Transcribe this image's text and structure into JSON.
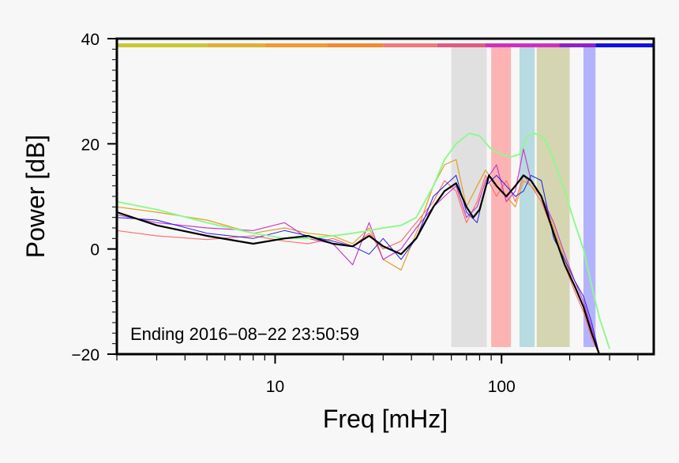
{
  "chart_data": {
    "type": "line",
    "xlabel": "Freq [mHz]",
    "ylabel": "Power [dB]",
    "xscale": "log",
    "xlim": [
      2,
      470
    ],
    "ylim": [
      -20,
      40
    ],
    "x_tick_labels": [
      {
        "value": 10,
        "label": "10"
      },
      {
        "value": 100,
        "label": "100"
      }
    ],
    "y_tick_labels": [
      {
        "value": 40,
        "label": "40"
      },
      {
        "value": 20,
        "label": "20"
      },
      {
        "value": 0,
        "label": "0"
      },
      {
        "value": -20,
        "label": "−20"
      }
    ],
    "annotation": "Ending 2016−08−22 23:50:59",
    "top_color_bar": [
      {
        "from": 2,
        "to": 5,
        "color": "#c8c832"
      },
      {
        "from": 5,
        "to": 9,
        "color": "#e0b032"
      },
      {
        "from": 9,
        "to": 17,
        "color": "#f09a30"
      },
      {
        "from": 17,
        "to": 30,
        "color": "#f08a30"
      },
      {
        "from": 30,
        "to": 52,
        "color": "#f07878"
      },
      {
        "from": 52,
        "to": 85,
        "color": "#e05a80"
      },
      {
        "from": 85,
        "to": 180,
        "color": "#d030c0"
      },
      {
        "from": 180,
        "to": 260,
        "color": "#9020c8"
      },
      {
        "from": 260,
        "to": 470,
        "color": "#1010e0"
      }
    ],
    "shaded_bands": [
      {
        "from": 60,
        "to": 86,
        "color": "#d0d0d0",
        "opacity": 0.6
      },
      {
        "from": 90,
        "to": 110,
        "color": "#ff9696",
        "opacity": 0.7
      },
      {
        "from": 120,
        "to": 140,
        "color": "#8cc8d0",
        "opacity": 0.6
      },
      {
        "from": 143,
        "to": 200,
        "color": "#b4b46e",
        "opacity": 0.5
      },
      {
        "from": 230,
        "to": 260,
        "color": "#9696ff",
        "opacity": 0.7
      }
    ],
    "series": [
      {
        "color": "#ff7070",
        "width": 1.2,
        "points": [
          [
            2,
            3.5
          ],
          [
            3,
            2.5
          ],
          [
            5,
            1.8
          ],
          [
            8,
            2.5
          ],
          [
            11,
            1.5
          ],
          [
            14,
            1.0
          ],
          [
            18,
            2.0
          ],
          [
            22,
            0.5
          ],
          [
            26,
            3.0
          ],
          [
            30,
            0.0
          ],
          [
            36,
            1.5
          ],
          [
            42,
            5.0
          ],
          [
            50,
            9.0
          ],
          [
            56,
            13.0
          ],
          [
            63,
            11.0
          ],
          [
            70,
            5.0
          ],
          [
            78,
            9.0
          ],
          [
            85,
            14.0
          ],
          [
            95,
            10.0
          ],
          [
            105,
            13.0
          ],
          [
            115,
            9.0
          ],
          [
            125,
            14.0
          ],
          [
            135,
            12.0
          ],
          [
            150,
            9.0
          ],
          [
            170,
            3.0
          ],
          [
            190,
            -3.0
          ],
          [
            210,
            -8.0
          ],
          [
            230,
            -12.0
          ],
          [
            250,
            -17.0
          ],
          [
            270,
            -20.0
          ]
        ]
      },
      {
        "color": "#e0a020",
        "width": 1.2,
        "points": [
          [
            2,
            8.0
          ],
          [
            3,
            7.0
          ],
          [
            5,
            5.5
          ],
          [
            8,
            3.0
          ],
          [
            11,
            4.0
          ],
          [
            14,
            3.0
          ],
          [
            18,
            2.5
          ],
          [
            22,
            1.0
          ],
          [
            26,
            4.0
          ],
          [
            30,
            -2.0
          ],
          [
            36,
            -4.0
          ],
          [
            42,
            3.0
          ],
          [
            50,
            12.0
          ],
          [
            56,
            16.0
          ],
          [
            63,
            17.0
          ],
          [
            70,
            8.0
          ],
          [
            78,
            12.0
          ],
          [
            85,
            15.0
          ],
          [
            95,
            12.0
          ],
          [
            105,
            10.0
          ],
          [
            115,
            8.0
          ],
          [
            125,
            13.0
          ],
          [
            135,
            12.0
          ],
          [
            150,
            10.0
          ],
          [
            170,
            4.0
          ],
          [
            190,
            -2.0
          ],
          [
            210,
            -7.0
          ],
          [
            230,
            -11.0
          ],
          [
            250,
            -16.0
          ],
          [
            270,
            -20.0
          ]
        ]
      },
      {
        "color": "#c83cc8",
        "width": 1.2,
        "points": [
          [
            2,
            6.5
          ],
          [
            3,
            5.0
          ],
          [
            5,
            4.0
          ],
          [
            8,
            3.5
          ],
          [
            11,
            5.0
          ],
          [
            14,
            2.0
          ],
          [
            18,
            1.0
          ],
          [
            22,
            -3.0
          ],
          [
            26,
            5.0
          ],
          [
            30,
            -2.0
          ],
          [
            36,
            0.0
          ],
          [
            42,
            4.0
          ],
          [
            50,
            8.0
          ],
          [
            56,
            10.0
          ],
          [
            63,
            12.0
          ],
          [
            70,
            6.0
          ],
          [
            78,
            8.0
          ],
          [
            85,
            13.0
          ],
          [
            95,
            16.0
          ],
          [
            105,
            9.0
          ],
          [
            115,
            11.0
          ],
          [
            125,
            19.0
          ],
          [
            135,
            13.0
          ],
          [
            150,
            10.0
          ],
          [
            170,
            5.0
          ],
          [
            190,
            -1.0
          ],
          [
            210,
            -6.0
          ],
          [
            230,
            -10.0
          ],
          [
            250,
            -15.0
          ],
          [
            270,
            -20.0
          ]
        ]
      },
      {
        "color": "#2020e0",
        "width": 1.0,
        "points": [
          [
            2,
            6.0
          ],
          [
            3,
            5.5
          ],
          [
            5,
            3.0
          ],
          [
            8,
            2.0
          ],
          [
            11,
            3.5
          ],
          [
            14,
            2.5
          ],
          [
            18,
            1.5
          ],
          [
            22,
            0.5
          ],
          [
            26,
            -1.0
          ],
          [
            30,
            2.0
          ],
          [
            36,
            -2.0
          ],
          [
            42,
            2.0
          ],
          [
            50,
            10.0
          ],
          [
            56,
            12.0
          ],
          [
            63,
            14.0
          ],
          [
            70,
            7.0
          ],
          [
            78,
            5.0
          ],
          [
            85,
            12.0
          ],
          [
            95,
            14.0
          ],
          [
            105,
            12.0
          ],
          [
            115,
            10.0
          ],
          [
            125,
            11.0
          ],
          [
            135,
            14.0
          ],
          [
            150,
            13.0
          ],
          [
            170,
            2.0
          ],
          [
            190,
            -2.0
          ],
          [
            210,
            -6.0
          ],
          [
            230,
            -9.0
          ],
          [
            250,
            -14.0
          ],
          [
            270,
            -20.0
          ]
        ]
      },
      {
        "color": "#90f890",
        "width": 2.0,
        "points": [
          [
            2,
            9.0
          ],
          [
            3,
            7.5
          ],
          [
            5,
            5.0
          ],
          [
            8,
            3.0
          ],
          [
            11,
            2.0
          ],
          [
            14,
            2.0
          ],
          [
            18,
            2.5
          ],
          [
            22,
            3.0
          ],
          [
            26,
            3.5
          ],
          [
            30,
            4.0
          ],
          [
            36,
            4.5
          ],
          [
            42,
            6.0
          ],
          [
            50,
            12.0
          ],
          [
            56,
            17.0
          ],
          [
            63,
            20.0
          ],
          [
            72,
            22.0
          ],
          [
            80,
            21.5
          ],
          [
            90,
            19.0
          ],
          [
            100,
            18.0
          ],
          [
            110,
            17.5
          ],
          [
            120,
            18.0
          ],
          [
            130,
            21.5
          ],
          [
            140,
            22.0
          ],
          [
            155,
            21.0
          ],
          [
            170,
            17.0
          ],
          [
            190,
            11.0
          ],
          [
            210,
            5.0
          ],
          [
            230,
            0.0
          ],
          [
            250,
            -7.0
          ],
          [
            270,
            -13.0
          ],
          [
            300,
            -19.0
          ]
        ]
      },
      {
        "color": "#000000",
        "width": 2.2,
        "points": [
          [
            2,
            7.0
          ],
          [
            3,
            4.5
          ],
          [
            5,
            2.5
          ],
          [
            8,
            1.0
          ],
          [
            11,
            2.0
          ],
          [
            14,
            2.5
          ],
          [
            18,
            1.0
          ],
          [
            22,
            0.5
          ],
          [
            26,
            2.5
          ],
          [
            30,
            0.5
          ],
          [
            36,
            -1.0
          ],
          [
            42,
            2.0
          ],
          [
            50,
            8.0
          ],
          [
            56,
            11.0
          ],
          [
            63,
            12.5
          ],
          [
            70,
            8.0
          ],
          [
            75,
            6.0
          ],
          [
            80,
            7.5
          ],
          [
            88,
            14.0
          ],
          [
            95,
            12.0
          ],
          [
            105,
            10.0
          ],
          [
            115,
            12.0
          ],
          [
            125,
            14.0
          ],
          [
            135,
            13.0
          ],
          [
            150,
            10.0
          ],
          [
            170,
            3.0
          ],
          [
            190,
            -3.0
          ],
          [
            210,
            -7.0
          ],
          [
            230,
            -11.0
          ],
          [
            250,
            -16.0
          ],
          [
            270,
            -20.0
          ]
        ]
      }
    ]
  }
}
